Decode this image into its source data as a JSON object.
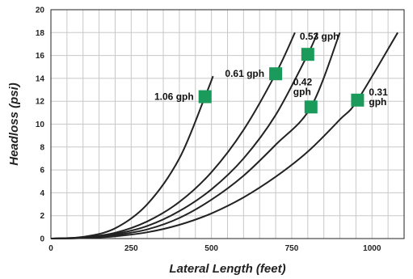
{
  "chart_data": {
    "type": "line",
    "title": "",
    "xlabel": "Lateral Length (feet)",
    "ylabel": "Headloss (psi)",
    "xlim": [
      0,
      1100
    ],
    "ylim": [
      0,
      20
    ],
    "x_ticks": [
      0,
      250,
      500,
      750,
      1000
    ],
    "y_ticks": [
      0,
      2,
      4,
      6,
      8,
      10,
      12,
      14,
      16,
      18,
      20
    ],
    "grid": true,
    "legend": "none",
    "line_color": "#222222",
    "marker_color": "#1a9b5b",
    "grid_color": "#c8c8c8",
    "series": [
      {
        "name": "1.06 gph",
        "label_lines": [
          "1.06 gph"
        ],
        "label_side": "left",
        "x": [
          0,
          100,
          200,
          300,
          400,
          480,
          505
        ],
        "y": [
          0,
          0.15,
          0.9,
          3.0,
          7.0,
          12.4,
          14.2
        ],
        "marker": [
          480,
          12.4
        ]
      },
      {
        "name": "0.61 gph",
        "label_lines": [
          "0.61 gph"
        ],
        "label_side": "left",
        "x": [
          0,
          100,
          200,
          300,
          400,
          500,
          600,
          700,
          760
        ],
        "y": [
          0,
          0.1,
          0.5,
          1.5,
          3.2,
          5.8,
          9.5,
          14.4,
          18.0
        ],
        "marker": [
          700,
          14.4
        ]
      },
      {
        "name": "0.53 gph",
        "label_lines": [
          "0.53 gph"
        ],
        "label_side": "above-right",
        "x": [
          0,
          100,
          200,
          300,
          400,
          500,
          600,
          700,
          800,
          830
        ],
        "y": [
          0,
          0.08,
          0.4,
          1.1,
          2.4,
          4.3,
          7.0,
          10.8,
          16.1,
          18.0
        ],
        "marker": [
          800,
          16.1
        ]
      },
      {
        "name": "0.42 gph",
        "label_lines": [
          "0.42",
          "gph"
        ],
        "label_side": "above-left",
        "x": [
          0,
          100,
          200,
          300,
          400,
          500,
          600,
          700,
          810,
          900
        ],
        "y": [
          0,
          0.06,
          0.3,
          0.8,
          1.8,
          3.4,
          5.5,
          8.2,
          11.5,
          18.0
        ],
        "marker": [
          810,
          11.5
        ]
      },
      {
        "name": "0.31 gph",
        "label_lines": [
          "0.31",
          "gph"
        ],
        "label_side": "right",
        "x": [
          0,
          100,
          200,
          300,
          400,
          500,
          600,
          700,
          800,
          900,
          955,
          1080
        ],
        "y": [
          0,
          0.04,
          0.2,
          0.55,
          1.2,
          2.2,
          3.6,
          5.4,
          7.6,
          10.4,
          12.1,
          18.0
        ],
        "marker": [
          955,
          12.1
        ]
      }
    ]
  }
}
